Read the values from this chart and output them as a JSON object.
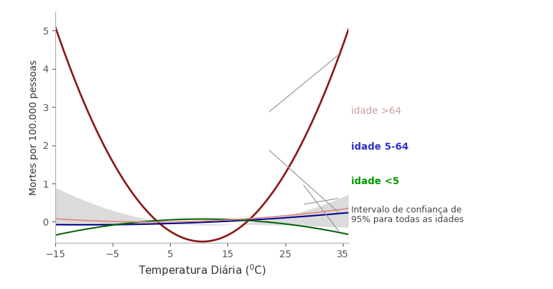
{
  "title": "",
  "xlabel": "Temperatura Diária (°C)",
  "ylabel": "Mortes por 100.000 pessoas",
  "xlim": [
    -15,
    36
  ],
  "ylim": [
    -0.55,
    5.5
  ],
  "xticks": [
    -15,
    -5,
    5,
    15,
    25,
    35
  ],
  "yticks": [
    0,
    1,
    2,
    3,
    4,
    5
  ],
  "background_color": "#ffffff",
  "line_age64_color": "#8B1A1A",
  "line_age564_color": "#00008B",
  "line_agelt5_color": "#006400",
  "ci_fill_color": "#d3d3d3",
  "all_ages_line_color": "#e08080",
  "label_age64": "idade >64",
  "label_age564": "idade 5-64",
  "label_agelt5": "idade <5",
  "label_ci_line1": "Intervalo de confiança de",
  "label_ci_line2": "95% para todas as idades",
  "label_age64_color": "#c8a0a0",
  "label_age564_color": "#3333cc",
  "label_agelt5_color": "#009900",
  "label_ci_color": "#444444",
  "annotation_line_color": "#999999",
  "spine_color": "#aaaaaa",
  "tick_color": "#555555",
  "a64": 0.008585,
  "b64": -0.1817,
  "c64": 0.443,
  "a564": 0.00015,
  "b564": 0.003,
  "c564": -0.065,
  "a5": -0.000633,
  "b5": 0.01367,
  "c5": -0.00252,
  "acu": 0.001381,
  "bcu": -0.03261,
  "ccu": 0.0998,
  "acl": -0.0001,
  "bcl": 0.001,
  "ccl": -0.055
}
